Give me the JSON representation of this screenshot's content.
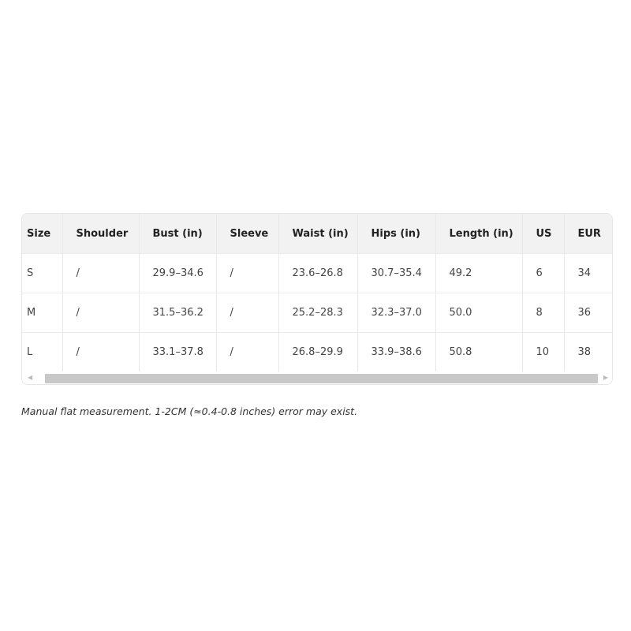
{
  "table": {
    "headers": [
      "Size",
      "Shoulder",
      "Bust (in)",
      "Sleeve",
      "Waist (in)",
      "Hips (in)",
      "Length (in)",
      "US",
      "EUR"
    ],
    "rows": [
      [
        "S",
        "/",
        "29.9–34.6",
        "/",
        "23.6–26.8",
        "30.7–35.4",
        "49.2",
        "6",
        "34"
      ],
      [
        "M",
        "/",
        "31.5–36.2",
        "/",
        "25.2–28.3",
        "32.3–37.0",
        "50.0",
        "8",
        "36"
      ],
      [
        "L",
        "/",
        "33.1–37.8",
        "/",
        "26.8–29.9",
        "33.9–38.6",
        "50.8",
        "10",
        "38"
      ]
    ]
  },
  "note": "Manual flat measurement. 1-2CM (≈0.4-0.8 inches) error may exist."
}
